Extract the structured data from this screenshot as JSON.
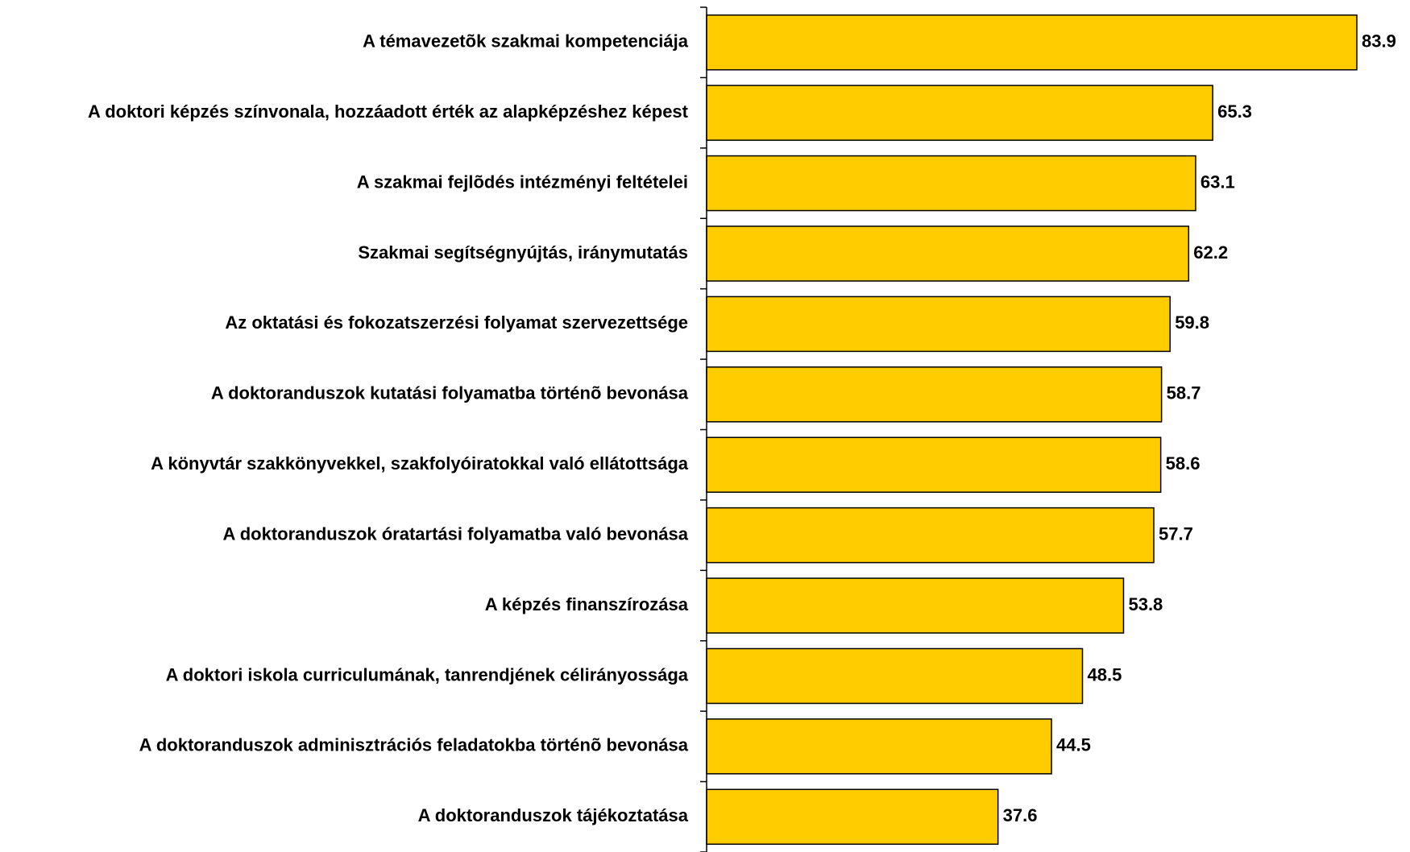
{
  "chart_data": {
    "type": "bar",
    "orientation": "horizontal",
    "categories": [
      "A témavezetõk szakmai kompetenciája",
      "A doktori képzés színvonala, hozzáadott érték az alapképzéshez képest",
      "A szakmai fejlõdés intézményi feltételei",
      "Szakmai segítségnyújtás, iránymutatás",
      "Az oktatási és fokozatszerzési folyamat szervezettsége",
      "A doktoranduszok kutatási folyamatba történõ bevonása",
      "A könyvtár szakkönyvekkel, szakfolyóiratokkal való ellátottsága",
      "A doktoranduszok óratartási folyamatba való bevonása",
      "A képzés finanszírozása",
      "A doktori iskola curriculumának, tanrendjének célirányossága",
      "A doktoranduszok adminisztrációs feladatokba történõ bevonása",
      "A doktoranduszok tájékoztatása"
    ],
    "values": [
      83.9,
      65.3,
      63.1,
      62.2,
      59.8,
      58.7,
      58.6,
      57.7,
      53.8,
      48.5,
      44.5,
      37.6
    ],
    "color": "#ffcc00"
  }
}
